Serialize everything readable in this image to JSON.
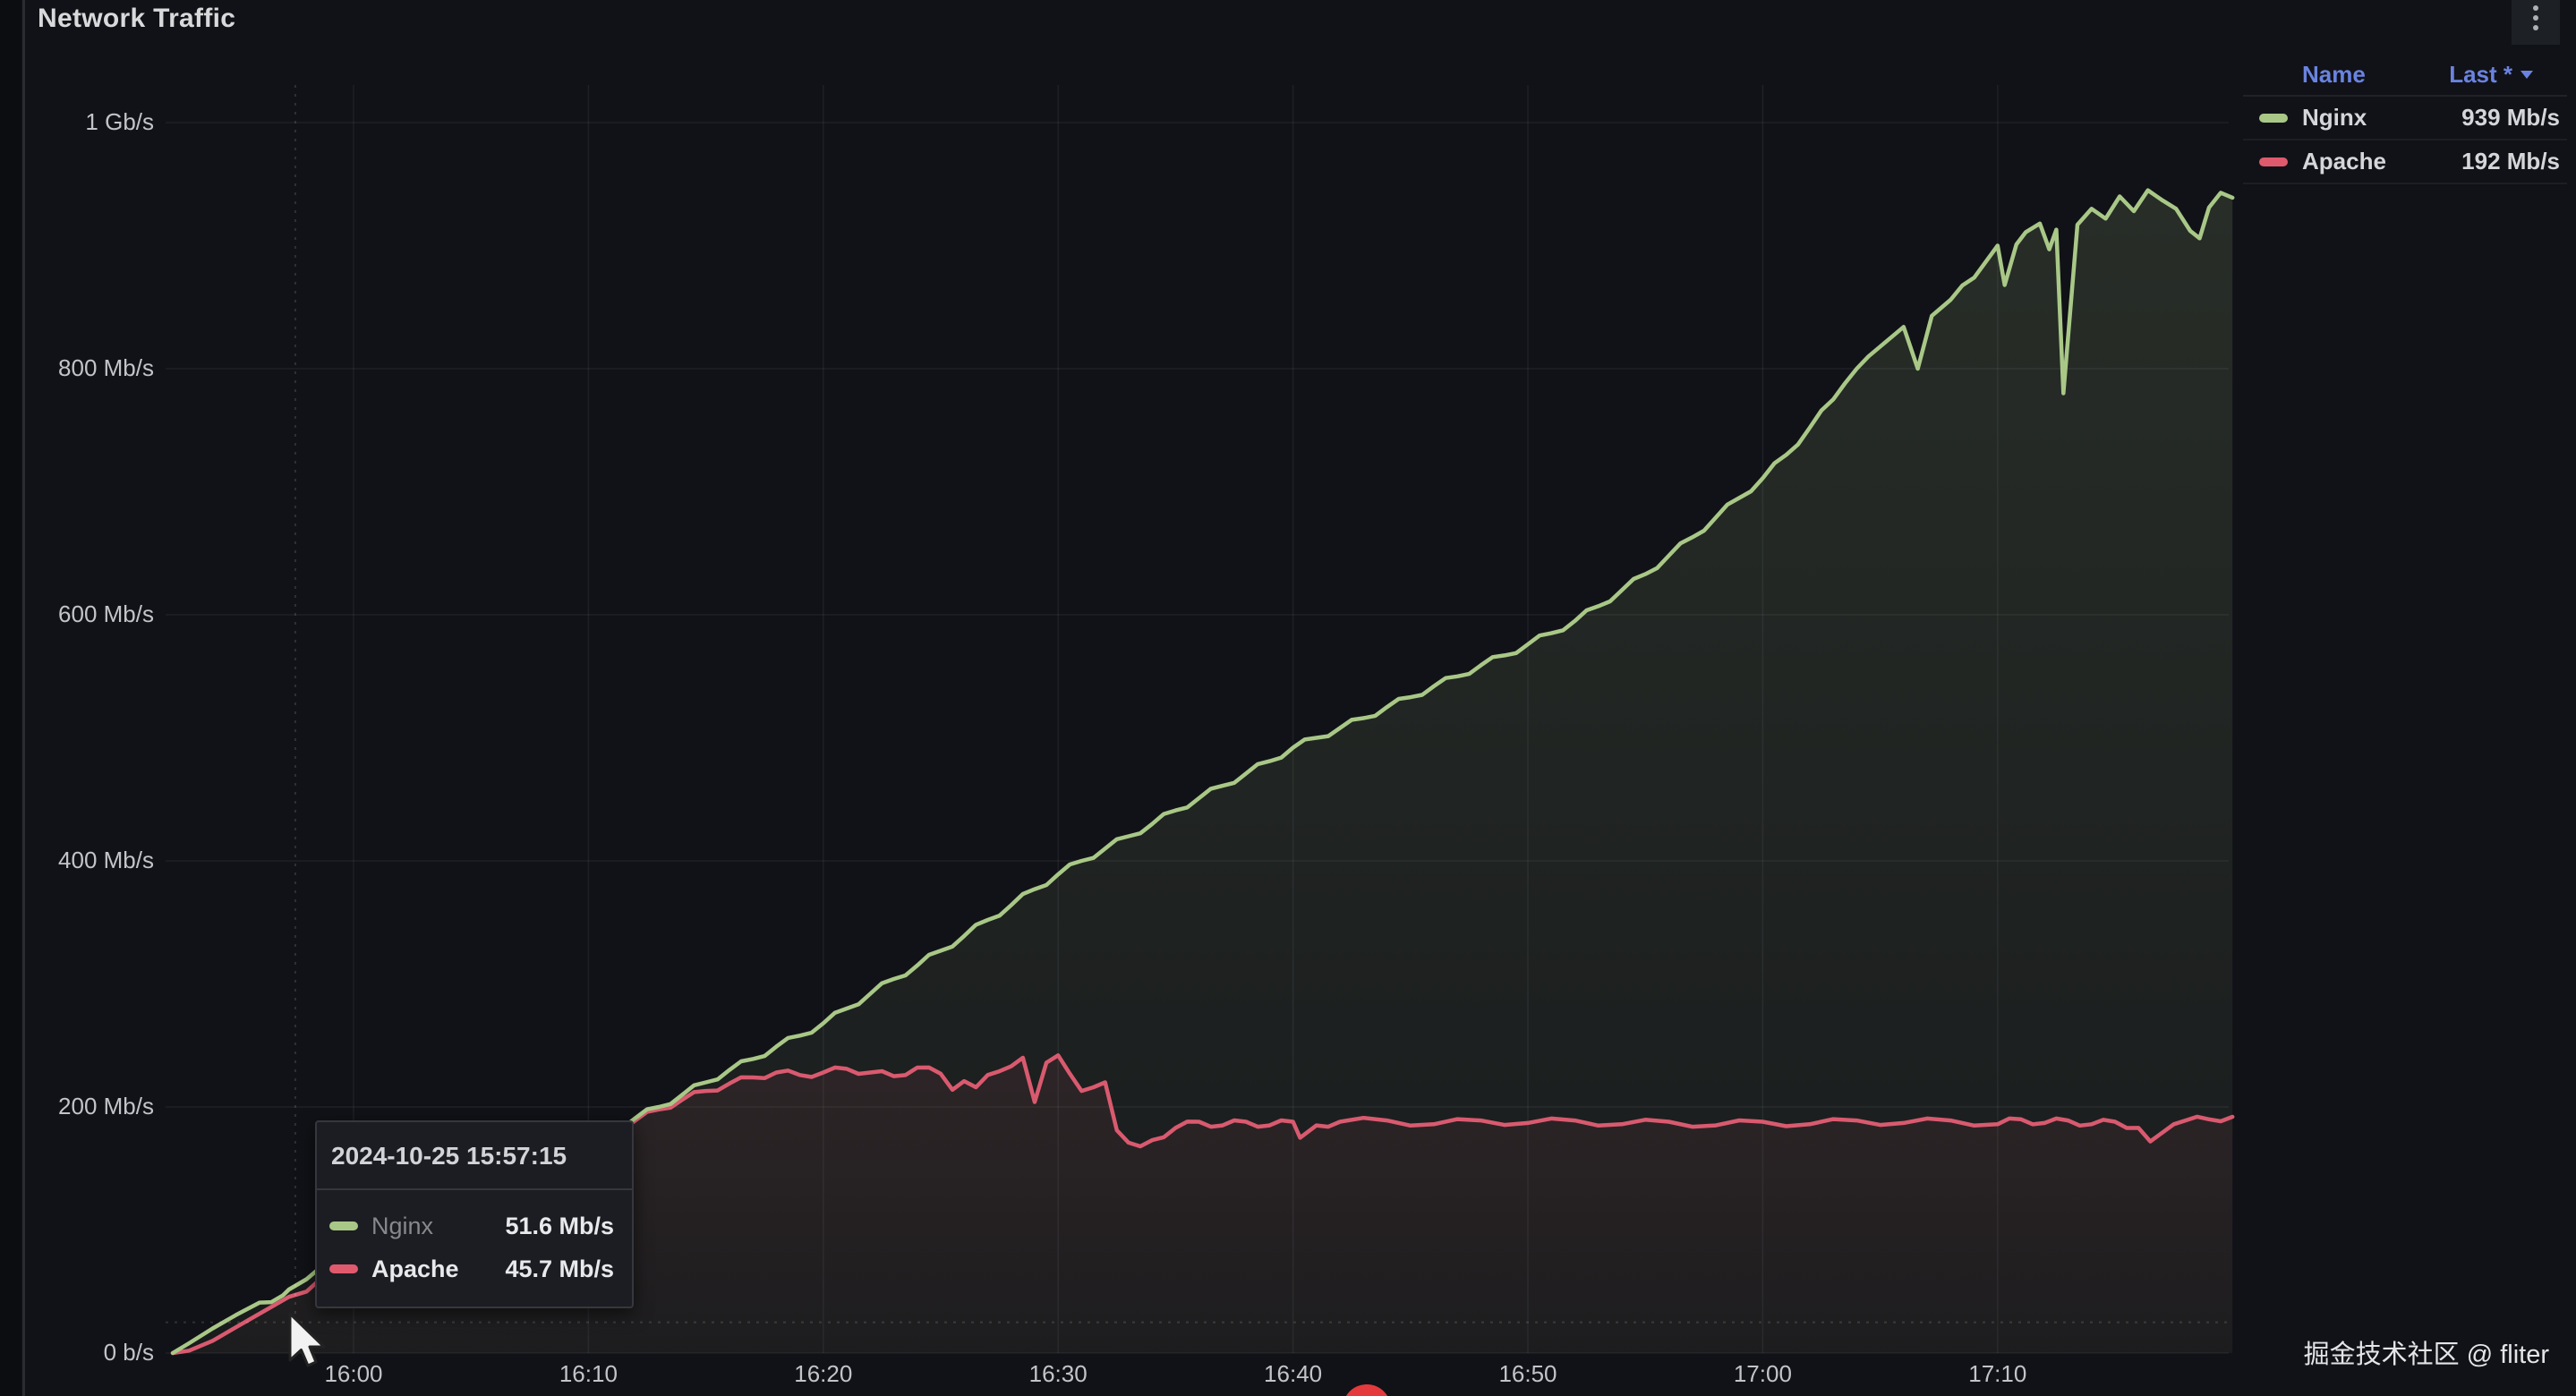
{
  "panel": {
    "title": "Network Traffic",
    "menu_icon": "kebab-menu"
  },
  "colors": {
    "background": "#111217",
    "nginx": "#A9C887",
    "apache": "#D95A6F",
    "legend_header_blue": "#6a83e0",
    "record_dot_red": "#e53a3d"
  },
  "legend": {
    "header": {
      "name": "Name",
      "last": "Last *"
    },
    "series": [
      {
        "label": "Nginx",
        "value": "939 Mb/s",
        "color": "#A9C887"
      },
      {
        "label": "Apache",
        "value": "192 Mb/s",
        "color": "#E05A6E"
      }
    ]
  },
  "tooltip": {
    "timestamp": "2024-10-25 15:57:15",
    "rows": [
      {
        "label": "Nginx",
        "value": "51.6 Mb/s",
        "color": "#A9C887",
        "highlight": false
      },
      {
        "label": "Apache",
        "value": "45.7 Mb/s",
        "color": "#E05A6E",
        "highlight": true
      }
    ]
  },
  "watermark": "掘金技术社区 @ fliter",
  "chart_data": {
    "type": "line",
    "title": "Network Traffic",
    "unit": "Mb/s",
    "grid": true,
    "legend_position": "top-right",
    "x_range": [
      "15:52",
      "17:20"
    ],
    "y_range": [
      0,
      1020
    ],
    "x_axis": {
      "ticks": [
        {
          "t": 0,
          "label": "16:00"
        },
        {
          "t": 10,
          "label": "16:10"
        },
        {
          "t": 20,
          "label": "16:20"
        },
        {
          "t": 30,
          "label": "16:30"
        },
        {
          "t": 40,
          "label": "16:40"
        },
        {
          "t": 50,
          "label": "16:50"
        },
        {
          "t": 60,
          "label": "17:00"
        },
        {
          "t": 70,
          "label": "17:10"
        }
      ]
    },
    "y_axis": {
      "ticks": [
        {
          "v": 0,
          "label": "0 b/s"
        },
        {
          "v": 200,
          "label": "200 Mb/s"
        },
        {
          "v": 400,
          "label": "400 Mb/s"
        },
        {
          "v": 600,
          "label": "600 Mb/s"
        },
        {
          "v": 800,
          "label": "800 Mb/s"
        },
        {
          "v": 1000,
          "label": "1 Gb/s"
        }
      ]
    },
    "crosshair": {
      "t": -2.48,
      "v": 25
    },
    "series": [
      {
        "name": "Nginx",
        "color": "#A9C887",
        "fill_opacity_top": 0.15,
        "fill_opacity_bottom": 0.05,
        "points": [
          [
            -7.7,
            0
          ],
          [
            -7,
            8
          ],
          [
            -6,
            20
          ],
          [
            -5,
            31
          ],
          [
            -4,
            41
          ],
          [
            -3,
            47
          ],
          [
            -2.75,
            51.6
          ],
          [
            -2,
            60
          ],
          [
            -1,
            71
          ],
          [
            0,
            82
          ],
          [
            1,
            91
          ],
          [
            2,
            100
          ],
          [
            3,
            109
          ],
          [
            4,
            118
          ],
          [
            5,
            127
          ],
          [
            6,
            136
          ],
          [
            7,
            145
          ],
          [
            8,
            154
          ],
          [
            9,
            163
          ],
          [
            10,
            172
          ],
          [
            11,
            181
          ],
          [
            12,
            191
          ],
          [
            13,
            200
          ],
          [
            14,
            210
          ],
          [
            15,
            220
          ],
          [
            16,
            230
          ],
          [
            17,
            239
          ],
          [
            18,
            249
          ],
          [
            19,
            258
          ],
          [
            20,
            268
          ],
          [
            21,
            280
          ],
          [
            22,
            292
          ],
          [
            23,
            304
          ],
          [
            24,
            315
          ],
          [
            25,
            327
          ],
          [
            26,
            339
          ],
          [
            27,
            352
          ],
          [
            28,
            364
          ],
          [
            29,
            377
          ],
          [
            30,
            389
          ],
          [
            31,
            400
          ],
          [
            32,
            410
          ],
          [
            33,
            420
          ],
          [
            34,
            430
          ],
          [
            35,
            441
          ],
          [
            36,
            451
          ],
          [
            37,
            461
          ],
          [
            38,
            471
          ],
          [
            39,
            481
          ],
          [
            40,
            492
          ],
          [
            41,
            500
          ],
          [
            42,
            508
          ],
          [
            43,
            516
          ],
          [
            44,
            525
          ],
          [
            45,
            533
          ],
          [
            46,
            542
          ],
          [
            47,
            550
          ],
          [
            48,
            559
          ],
          [
            49,
            567
          ],
          [
            50,
            576
          ],
          [
            51,
            585
          ],
          [
            52,
            595
          ],
          [
            53,
            607
          ],
          [
            54,
            620
          ],
          [
            55,
            633
          ],
          [
            56,
            648
          ],
          [
            57,
            663
          ],
          [
            58,
            679
          ],
          [
            59,
            695
          ],
          [
            60,
            711
          ],
          [
            61,
            730
          ],
          [
            62,
            752
          ],
          [
            63,
            775
          ],
          [
            63.5,
            788
          ],
          [
            64,
            800
          ],
          [
            64.5,
            810
          ],
          [
            65,
            818
          ],
          [
            65.5,
            826
          ],
          [
            66,
            834
          ],
          [
            66.6,
            800
          ],
          [
            67.2,
            843
          ],
          [
            68,
            856
          ],
          [
            69,
            874
          ],
          [
            70,
            900
          ],
          [
            70.3,
            868
          ],
          [
            70.8,
            901
          ],
          [
            71.2,
            911
          ],
          [
            71.8,
            918
          ],
          [
            72.2,
            897
          ],
          [
            72.5,
            913
          ],
          [
            72.8,
            780
          ],
          [
            73.4,
            917
          ],
          [
            74,
            930
          ],
          [
            74.6,
            922
          ],
          [
            75.2,
            940
          ],
          [
            75.8,
            928
          ],
          [
            76.4,
            945
          ],
          [
            77,
            937
          ],
          [
            77.6,
            930
          ],
          [
            78.2,
            912
          ],
          [
            78.6,
            906
          ],
          [
            79,
            931
          ],
          [
            79.5,
            943
          ],
          [
            80,
            939
          ]
        ]
      },
      {
        "name": "Apache",
        "color": "#D95A6F",
        "fill_opacity_top": 0.09,
        "fill_opacity_bottom": 0.02,
        "points": [
          [
            -7.7,
            0
          ],
          [
            -7,
            2
          ],
          [
            -6,
            10
          ],
          [
            -5,
            21
          ],
          [
            -4,
            32
          ],
          [
            -3,
            43
          ],
          [
            -2.75,
            45.7
          ],
          [
            -2,
            50
          ],
          [
            -1,
            62
          ],
          [
            0,
            74
          ],
          [
            1,
            85
          ],
          [
            2,
            95
          ],
          [
            3,
            105
          ],
          [
            4,
            115
          ],
          [
            5,
            125
          ],
          [
            6,
            134
          ],
          [
            7,
            143
          ],
          [
            8,
            152
          ],
          [
            9,
            161
          ],
          [
            10,
            170
          ],
          [
            11,
            180
          ],
          [
            12,
            189
          ],
          [
            13,
            198
          ],
          [
            14,
            206
          ],
          [
            15,
            213
          ],
          [
            16,
            219
          ],
          [
            17,
            224
          ],
          [
            18,
            228
          ],
          [
            19,
            226
          ],
          [
            20,
            228
          ],
          [
            21,
            231
          ],
          [
            22,
            228
          ],
          [
            23,
            225
          ],
          [
            24,
            232
          ],
          [
            25,
            227
          ],
          [
            25.5,
            214
          ],
          [
            26,
            221
          ],
          [
            26.5,
            216
          ],
          [
            27,
            226
          ],
          [
            27.5,
            229
          ],
          [
            28,
            233
          ],
          [
            28.5,
            240
          ],
          [
            29,
            204
          ],
          [
            29.5,
            236
          ],
          [
            30,
            242
          ],
          [
            30.5,
            227
          ],
          [
            31,
            213
          ],
          [
            31.5,
            216
          ],
          [
            32,
            220
          ],
          [
            32.5,
            181
          ],
          [
            33,
            171
          ],
          [
            33.5,
            168
          ],
          [
            34,
            173
          ],
          [
            35,
            183
          ],
          [
            36,
            188
          ],
          [
            37,
            185
          ],
          [
            38,
            188
          ],
          [
            39,
            185
          ],
          [
            40,
            188
          ],
          [
            40.3,
            175
          ],
          [
            41,
            185
          ],
          [
            42,
            188
          ],
          [
            44,
            189
          ],
          [
            46,
            186
          ],
          [
            48,
            189
          ],
          [
            50,
            187
          ],
          [
            52,
            189
          ],
          [
            54,
            186
          ],
          [
            56,
            188
          ],
          [
            58,
            185
          ],
          [
            60,
            188
          ],
          [
            62,
            186
          ],
          [
            64,
            189
          ],
          [
            66,
            187
          ],
          [
            68,
            189
          ],
          [
            70,
            186
          ],
          [
            71,
            190
          ],
          [
            72,
            187
          ],
          [
            73,
            189
          ],
          [
            74,
            186
          ],
          [
            75,
            188
          ],
          [
            76,
            183
          ],
          [
            76.5,
            172
          ],
          [
            77,
            179
          ],
          [
            77.5,
            186
          ],
          [
            78,
            189
          ],
          [
            79,
            190
          ],
          [
            80,
            192
          ]
        ]
      }
    ]
  }
}
